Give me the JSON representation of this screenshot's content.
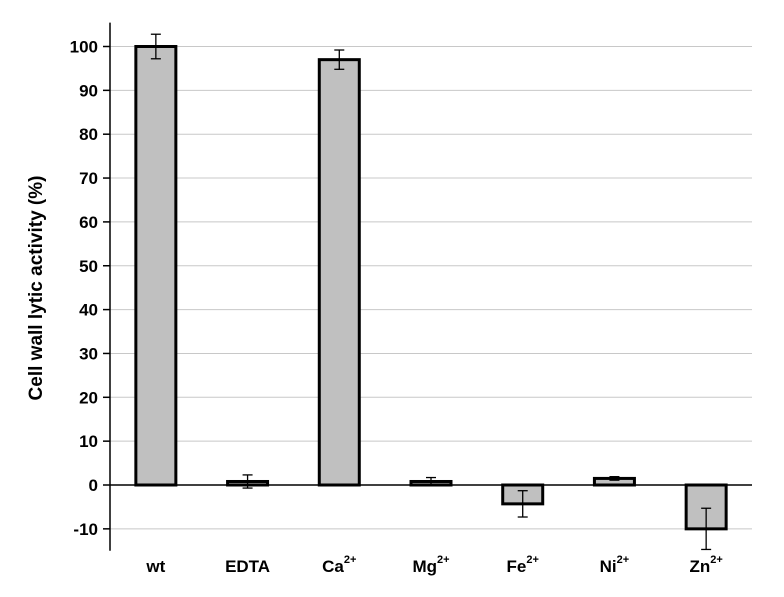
{
  "chart_data": {
    "type": "bar",
    "categories": [
      {
        "base": "wt",
        "sup": ""
      },
      {
        "base": "EDTA",
        "sup": ""
      },
      {
        "base": "Ca",
        "sup": "2+"
      },
      {
        "base": "Mg",
        "sup": "2+"
      },
      {
        "base": "Fe",
        "sup": "2+"
      },
      {
        "base": "Ni",
        "sup": "2+"
      },
      {
        "base": "Zn",
        "sup": "2+"
      }
    ],
    "values": [
      100,
      0.8,
      97,
      0.8,
      -4.3,
      1.5,
      -10
    ],
    "errors": [
      2.8,
      1.5,
      2.2,
      0.9,
      3.0,
      0.4,
      4.7
    ],
    "ylabel": "Cell wall lytic activity (%)",
    "xlabel": "",
    "ylim": [
      -15,
      105
    ],
    "yticks": [
      -10,
      0,
      10,
      20,
      30,
      40,
      50,
      60,
      70,
      80,
      90,
      100
    ],
    "grid": "horizontal",
    "colors": {
      "bar_fill": "#c0c0c0",
      "bar_stroke": "#000000",
      "grid": "#c8c8c8"
    }
  }
}
